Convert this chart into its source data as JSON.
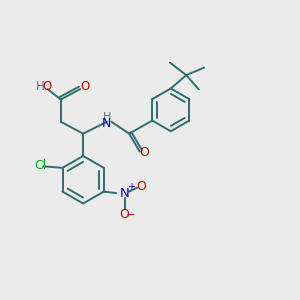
{
  "bg_color": "#ebebeb",
  "bond_color": "#2d6e6e",
  "atom_colors": {
    "O": "#cc0000",
    "N": "#0000cc",
    "Cl": "#00aa00",
    "H": "#5a7a7a",
    "C": "#2d6e6e"
  }
}
